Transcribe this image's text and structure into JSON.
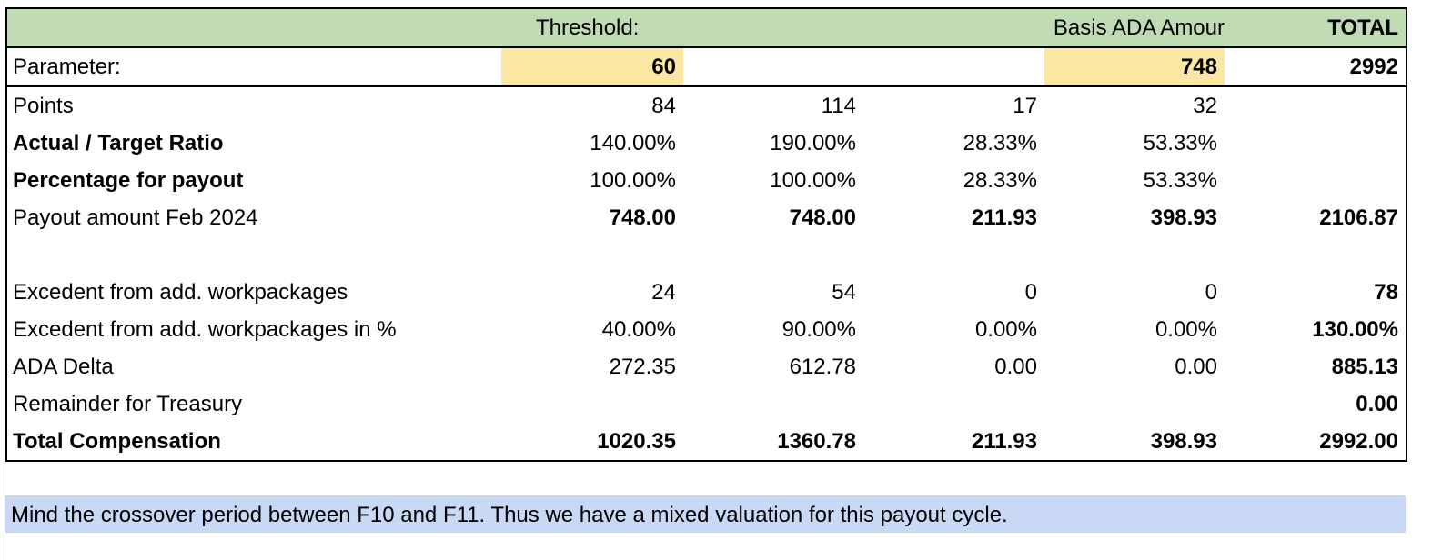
{
  "header": {
    "threshold_label": "Threshold:",
    "basis_label": "Basis ADA Amour",
    "total_label": "TOTAL"
  },
  "parameter": {
    "label": "Parameter:",
    "threshold_value": "60",
    "basis_value": "748",
    "total_value": "2992"
  },
  "rows": [
    {
      "label": "Points",
      "bold_label": false,
      "bold_values": false,
      "values": [
        "84",
        "114",
        "17",
        "32",
        ""
      ]
    },
    {
      "label": "Actual / Target Ratio",
      "bold_label": true,
      "bold_values": false,
      "values": [
        "140.00%",
        "190.00%",
        "28.33%",
        "53.33%",
        ""
      ]
    },
    {
      "label": "Percentage for payout",
      "bold_label": true,
      "bold_values": false,
      "values": [
        "100.00%",
        "100.00%",
        "28.33%",
        "53.33%",
        ""
      ]
    },
    {
      "label": "Payout amount Feb 2024",
      "bold_label": false,
      "bold_values": true,
      "values": [
        "748.00",
        "748.00",
        "211.93",
        "398.93",
        "2106.87"
      ]
    },
    {
      "label": "",
      "bold_label": false,
      "bold_values": false,
      "values": [
        "",
        "",
        "",
        "",
        ""
      ]
    },
    {
      "label": "Excedent from add. workpackages",
      "bold_label": false,
      "bold_values": false,
      "values": [
        "24",
        "54",
        "0",
        "0",
        "78"
      ]
    },
    {
      "label": "Excedent from add. workpackages in %",
      "bold_label": false,
      "bold_values": false,
      "values": [
        "40.00%",
        "90.00%",
        "0.00%",
        "0.00%",
        "130.00%"
      ]
    },
    {
      "label": "ADA Delta",
      "bold_label": false,
      "bold_values": false,
      "values": [
        "272.35",
        "612.78",
        "0.00",
        "0.00",
        "885.13"
      ]
    },
    {
      "label": "Remainder for Treasury",
      "bold_label": false,
      "bold_values": false,
      "values": [
        "",
        "",
        "",
        "",
        "0.00"
      ]
    },
    {
      "label": "Total Compensation",
      "bold_label": true,
      "bold_values": true,
      "values": [
        "1020.35",
        "1360.78",
        "211.93",
        "398.93",
        "2992.00"
      ]
    }
  ],
  "note": "Mind the crossover period between F10 and F11. Thus we have a mixed valuation for this payout cycle.",
  "colors": {
    "header_bg": "#c1dcb4",
    "highlight_bg": "#fbe7a2",
    "note_bg": "#c9d8f4"
  }
}
